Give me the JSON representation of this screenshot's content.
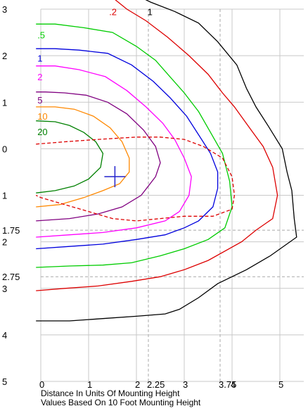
{
  "chart_data": {
    "type": "line",
    "title": "",
    "xlabel": "",
    "ylabel": "",
    "grid": true,
    "xlim": [
      0,
      5.5
    ],
    "ylim": [
      3,
      -5
    ],
    "x_ticks": [
      {
        "value": 0,
        "label": "0"
      },
      {
        "value": 1,
        "label": "1"
      },
      {
        "value": 2,
        "label": "2"
      },
      {
        "value": 2.25,
        "label": "2.25"
      },
      {
        "value": 3,
        "label": "3"
      },
      {
        "value": 3.75,
        "label": "3.75"
      },
      {
        "value": 4,
        "label": "4"
      },
      {
        "value": 5,
        "label": "5"
      }
    ],
    "y_ticks": [
      {
        "value": 3,
        "label": "3"
      },
      {
        "value": 2,
        "label": "2"
      },
      {
        "value": 1,
        "label": "1"
      },
      {
        "value": 0,
        "label": "0"
      },
      {
        "value": -1,
        "label": "1"
      },
      {
        "value": -1.75,
        "label": "1.75"
      },
      {
        "value": -2,
        "label": "2"
      },
      {
        "value": -2.75,
        "label": "2.75"
      },
      {
        "value": -3,
        "label": "3"
      },
      {
        "value": -4,
        "label": "4"
      },
      {
        "value": -5,
        "label": "5"
      }
    ],
    "dashed_gridlines": {
      "x": [
        2.25,
        3.75
      ],
      "y": [
        -1.75,
        -2.75
      ]
    },
    "marker": {
      "x": 1.55,
      "y": -0.6,
      "color": "#2222cc",
      "symbol": "+"
    },
    "series": [
      {
        "label": "1",
        "color": "#000000",
        "dashed": false,
        "points": [
          [
            -0.1,
            -3.7
          ],
          [
            0.6,
            -3.7
          ],
          [
            1.3,
            -3.65
          ],
          [
            2.0,
            -3.6
          ],
          [
            2.6,
            -3.55
          ],
          [
            2.9,
            -3.45
          ],
          [
            3.3,
            -3.2
          ],
          [
            3.7,
            -2.9
          ],
          [
            4.3,
            -2.6
          ],
          [
            4.8,
            -2.3
          ],
          [
            5.35,
            -1.9
          ],
          [
            5.3,
            -1.5
          ],
          [
            5.25,
            -0.9
          ],
          [
            5.15,
            -0.5
          ],
          [
            5.05,
            0.0
          ],
          [
            4.9,
            0.25
          ],
          [
            4.75,
            0.5
          ],
          [
            4.5,
            0.9
          ],
          [
            4.3,
            1.3
          ],
          [
            4.1,
            1.8
          ],
          [
            3.7,
            2.3
          ],
          [
            3.3,
            2.7
          ],
          [
            2.8,
            2.95
          ],
          [
            2.3,
            3.15
          ],
          [
            2.1,
            3.25
          ]
        ]
      },
      {
        "label": ".2",
        "color": "#dd0000",
        "dashed": false,
        "points": [
          [
            -0.1,
            -3.05
          ],
          [
            0.5,
            -3.0
          ],
          [
            1.2,
            -2.95
          ],
          [
            1.9,
            -2.85
          ],
          [
            2.5,
            -2.75
          ],
          [
            3.0,
            -2.6
          ],
          [
            3.5,
            -2.4
          ],
          [
            4.2,
            -2.0
          ],
          [
            4.5,
            -1.75
          ],
          [
            4.85,
            -1.5
          ],
          [
            4.95,
            -1.0
          ],
          [
            4.85,
            -0.4
          ],
          [
            4.65,
            0.05
          ],
          [
            4.4,
            0.4
          ],
          [
            4.05,
            0.9
          ],
          [
            3.8,
            1.2
          ],
          [
            3.5,
            1.6
          ],
          [
            3.1,
            2.0
          ],
          [
            2.65,
            2.4
          ],
          [
            2.2,
            2.75
          ],
          [
            1.8,
            3.0
          ],
          [
            1.5,
            3.25
          ]
        ]
      },
      {
        "label": ".5",
        "color": "#00cc00",
        "dashed": false,
        "points": [
          [
            -0.1,
            -2.55
          ],
          [
            0.6,
            -2.52
          ],
          [
            1.3,
            -2.5
          ],
          [
            1.9,
            -2.45
          ],
          [
            2.5,
            -2.3
          ],
          [
            3.0,
            -2.15
          ],
          [
            3.5,
            -1.95
          ],
          [
            3.85,
            -1.7
          ],
          [
            4.0,
            -1.25
          ],
          [
            3.95,
            -0.7
          ],
          [
            3.8,
            -0.1
          ],
          [
            3.55,
            0.35
          ],
          [
            3.3,
            0.8
          ],
          [
            3.0,
            1.2
          ],
          [
            2.7,
            1.55
          ],
          [
            2.4,
            1.9
          ],
          [
            2.0,
            2.2
          ],
          [
            1.5,
            2.5
          ],
          [
            0.9,
            2.6
          ],
          [
            0.3,
            2.68
          ],
          [
            -0.1,
            2.68
          ]
        ]
      },
      {
        "label": "1",
        "color": "#0000dd",
        "dashed": false,
        "points": [
          [
            -0.1,
            -2.15
          ],
          [
            0.6,
            -2.1
          ],
          [
            1.3,
            -2.05
          ],
          [
            2.0,
            -1.95
          ],
          [
            2.6,
            -1.85
          ],
          [
            3.0,
            -1.7
          ],
          [
            3.3,
            -1.55
          ],
          [
            3.6,
            -1.25
          ],
          [
            3.7,
            -0.85
          ],
          [
            3.7,
            -0.5
          ],
          [
            3.55,
            -0.1
          ],
          [
            3.3,
            0.3
          ],
          [
            3.05,
            0.7
          ],
          [
            2.7,
            1.1
          ],
          [
            2.35,
            1.45
          ],
          [
            1.9,
            1.8
          ],
          [
            1.4,
            2.05
          ],
          [
            0.8,
            2.12
          ],
          [
            0.3,
            2.15
          ],
          [
            -0.1,
            2.15
          ]
        ]
      },
      {
        "label": "2",
        "color": "#ff00ff",
        "dashed": false,
        "points": [
          [
            -0.1,
            -1.9
          ],
          [
            0.6,
            -1.85
          ],
          [
            1.3,
            -1.8
          ],
          [
            2.0,
            -1.7
          ],
          [
            2.6,
            -1.55
          ],
          [
            2.9,
            -1.35
          ],
          [
            3.1,
            -1.0
          ],
          [
            3.15,
            -0.6
          ],
          [
            3.0,
            -0.2
          ],
          [
            2.8,
            0.2
          ],
          [
            2.55,
            0.55
          ],
          [
            2.2,
            0.9
          ],
          [
            1.8,
            1.25
          ],
          [
            1.35,
            1.55
          ],
          [
            0.8,
            1.7
          ],
          [
            0.3,
            1.78
          ],
          [
            -0.1,
            1.78
          ]
        ]
      },
      {
        "label": "5",
        "color": "#800080",
        "dashed": false,
        "points": [
          [
            -0.1,
            -1.55
          ],
          [
            0.6,
            -1.5
          ],
          [
            1.2,
            -1.4
          ],
          [
            1.7,
            -1.25
          ],
          [
            2.1,
            -1.0
          ],
          [
            2.4,
            -0.6
          ],
          [
            2.5,
            -0.3
          ],
          [
            2.4,
            0.05
          ],
          [
            2.15,
            0.4
          ],
          [
            1.8,
            0.75
          ],
          [
            1.4,
            1.0
          ],
          [
            0.95,
            1.15
          ],
          [
            0.5,
            1.2
          ],
          [
            0.1,
            1.22
          ],
          [
            -0.1,
            1.22
          ]
        ]
      },
      {
        "label": "10",
        "color": "#ff8800",
        "dashed": false,
        "points": [
          [
            -0.1,
            -1.25
          ],
          [
            0.4,
            -1.2
          ],
          [
            0.9,
            -1.05
          ],
          [
            1.3,
            -0.9
          ],
          [
            1.65,
            -0.75
          ],
          [
            1.85,
            -0.5
          ],
          [
            1.85,
            -0.2
          ],
          [
            1.7,
            0.15
          ],
          [
            1.45,
            0.45
          ],
          [
            1.1,
            0.7
          ],
          [
            0.7,
            0.85
          ],
          [
            0.3,
            0.9
          ],
          [
            -0.1,
            0.9
          ]
        ]
      },
      {
        "label": "20",
        "color": "#008000",
        "dashed": false,
        "points": [
          [
            -0.1,
            -0.95
          ],
          [
            0.3,
            -0.9
          ],
          [
            0.7,
            -0.8
          ],
          [
            1.0,
            -0.65
          ],
          [
            1.25,
            -0.4
          ],
          [
            1.3,
            -0.1
          ],
          [
            1.15,
            0.15
          ],
          [
            0.9,
            0.35
          ],
          [
            0.6,
            0.5
          ],
          [
            0.3,
            0.58
          ],
          [
            -0.1,
            0.6
          ]
        ]
      },
      {
        "label": "",
        "color": "#dd0000",
        "dashed": true,
        "points": [
          [
            -0.1,
            0.1
          ],
          [
            0.5,
            0.15
          ],
          [
            1.2,
            0.2
          ],
          [
            2.0,
            0.25
          ],
          [
            2.5,
            0.25
          ],
          [
            3.0,
            0.2
          ],
          [
            3.4,
            0.05
          ],
          [
            3.8,
            -0.2
          ],
          [
            4.0,
            -0.6
          ],
          [
            4.05,
            -1.0
          ],
          [
            4.0,
            -1.3
          ],
          [
            3.6,
            -1.45
          ],
          [
            3.0,
            -1.45
          ],
          [
            2.5,
            -1.5
          ],
          [
            2.0,
            -1.55
          ],
          [
            1.5,
            -1.5
          ],
          [
            1.0,
            -1.35
          ],
          [
            0.5,
            -1.2
          ],
          [
            0.0,
            -1.05
          ],
          [
            -0.1,
            -1.0
          ]
        ]
      }
    ],
    "contour_labels": [
      {
        "text": ".2",
        "x": 1.4,
        "y": 2.95,
        "color": "#dd0000"
      },
      {
        "text": "1",
        "x": 2.2,
        "y": 2.95,
        "color": "#000000"
      },
      {
        "text": ".5",
        "x": -0.1,
        "y": 2.45,
        "color": "#00cc00"
      },
      {
        "text": "1",
        "x": -0.1,
        "y": 1.95,
        "color": "#0000dd"
      },
      {
        "text": "2",
        "x": -0.1,
        "y": 1.55,
        "color": "#ff00ff"
      },
      {
        "text": "5",
        "x": -0.1,
        "y": 1.05,
        "color": "#800080"
      },
      {
        "text": "10",
        "x": -0.1,
        "y": 0.7,
        "color": "#ff8800"
      },
      {
        "text": "20",
        "x": -0.1,
        "y": 0.37,
        "color": "#008000"
      }
    ]
  },
  "captions": {
    "line1": "Distance In Units Of Mounting Height",
    "line2": "Values Based On 10 Foot Mounting Height"
  }
}
